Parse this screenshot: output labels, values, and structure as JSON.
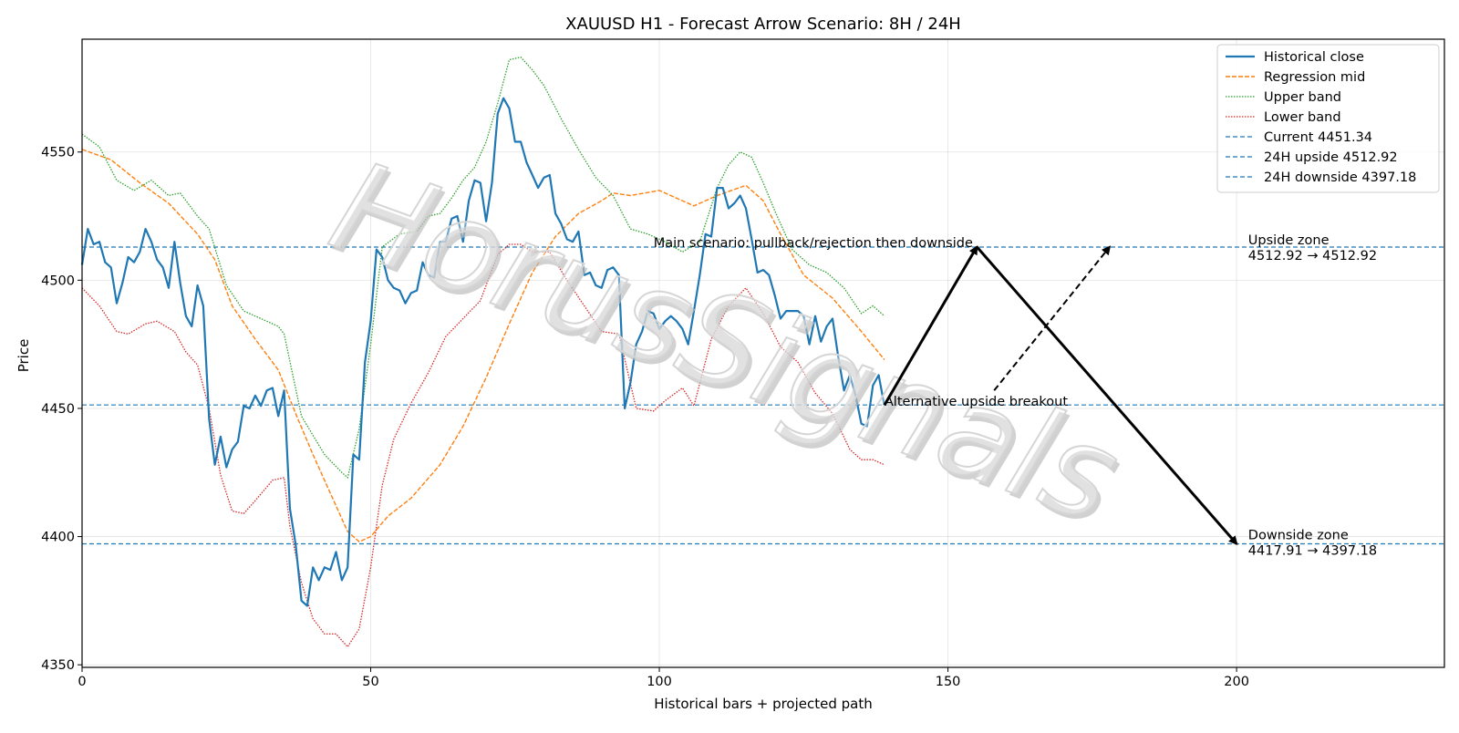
{
  "chart_data": {
    "type": "line",
    "title": "XAUUSD H1 - Forecast Arrow Scenario: 8H / 24H",
    "xlabel": "Historical bars + projected path",
    "ylabel": "Price",
    "xlim": [
      0,
      236
    ],
    "ylim": [
      4349,
      4594
    ],
    "xticks": [
      0,
      50,
      100,
      150,
      200
    ],
    "yticks": [
      4350,
      4400,
      4450,
      4500,
      4550
    ],
    "grid": true,
    "legend_position": "top-right",
    "watermark": "HorusSignals",
    "colors": {
      "historical": "#1f77b4",
      "mid": "#ff7f0e",
      "upper": "#2ca02c",
      "lower": "#d62728",
      "hline": "#1f77b4",
      "arrow": "#000000"
    },
    "legend": [
      {
        "label": "Historical close",
        "series": "close"
      },
      {
        "label": "Regression mid",
        "series": "mid"
      },
      {
        "label": "Upper band",
        "series": "upper"
      },
      {
        "label": "Lower band",
        "series": "lower"
      },
      {
        "label": "Current 4451.34",
        "series": "current"
      },
      {
        "label": "24H upside 4512.92",
        "series": "upside"
      },
      {
        "label": "24H downside 4397.18",
        "series": "downside"
      }
    ],
    "close": [
      [
        0,
        4506
      ],
      [
        1,
        4520
      ],
      [
        2,
        4514
      ],
      [
        3,
        4515
      ],
      [
        4,
        4507
      ],
      [
        5,
        4505
      ],
      [
        6,
        4491
      ],
      [
        7,
        4499
      ],
      [
        8,
        4509
      ],
      [
        9,
        4507
      ],
      [
        10,
        4511
      ],
      [
        11,
        4520
      ],
      [
        12,
        4515
      ],
      [
        13,
        4508
      ],
      [
        14,
        4505
      ],
      [
        15,
        4497
      ],
      [
        16,
        4515
      ],
      [
        17,
        4499
      ],
      [
        18,
        4486
      ],
      [
        19,
        4482
      ],
      [
        20,
        4498
      ],
      [
        21,
        4490
      ],
      [
        22,
        4446
      ],
      [
        23,
        4428
      ],
      [
        24,
        4439
      ],
      [
        25,
        4427
      ],
      [
        26,
        4434
      ],
      [
        27,
        4437
      ],
      [
        28,
        4451
      ],
      [
        29,
        4450
      ],
      [
        30,
        4455
      ],
      [
        31,
        4451
      ],
      [
        32,
        4457
      ],
      [
        33,
        4458
      ],
      [
        34,
        4447
      ],
      [
        35,
        4457
      ],
      [
        36,
        4411
      ],
      [
        37,
        4397
      ],
      [
        38,
        4375
      ],
      [
        39,
        4373
      ],
      [
        40,
        4388
      ],
      [
        41,
        4383
      ],
      [
        42,
        4388
      ],
      [
        43,
        4387
      ],
      [
        44,
        4394
      ],
      [
        45,
        4383
      ],
      [
        46,
        4388
      ],
      [
        47,
        4432
      ],
      [
        48,
        4430
      ],
      [
        49,
        4468
      ],
      [
        50,
        4484
      ],
      [
        51,
        4512
      ],
      [
        52,
        4509
      ],
      [
        53,
        4500
      ],
      [
        54,
        4497
      ],
      [
        55,
        4496
      ],
      [
        56,
        4491
      ],
      [
        57,
        4495
      ],
      [
        58,
        4496
      ],
      [
        59,
        4507
      ],
      [
        60,
        4502
      ],
      [
        61,
        4501
      ],
      [
        62,
        4515
      ],
      [
        63,
        4515
      ],
      [
        64,
        4524
      ],
      [
        65,
        4525
      ],
      [
        66,
        4515
      ],
      [
        67,
        4531
      ],
      [
        68,
        4539
      ],
      [
        69,
        4538
      ],
      [
        70,
        4523
      ],
      [
        71,
        4538
      ],
      [
        72,
        4565
      ],
      [
        73,
        4571
      ],
      [
        74,
        4567
      ],
      [
        75,
        4554
      ],
      [
        76,
        4554
      ],
      [
        77,
        4546
      ],
      [
        78,
        4541
      ],
      [
        79,
        4536
      ],
      [
        80,
        4540
      ],
      [
        81,
        4541
      ],
      [
        82,
        4526
      ],
      [
        83,
        4522
      ],
      [
        84,
        4516
      ],
      [
        85,
        4515
      ],
      [
        86,
        4519
      ],
      [
        87,
        4502
      ],
      [
        88,
        4503
      ],
      [
        89,
        4498
      ],
      [
        90,
        4497
      ],
      [
        91,
        4504
      ],
      [
        92,
        4505
      ],
      [
        93,
        4502
      ],
      [
        94,
        4450
      ],
      [
        95,
        4460
      ],
      [
        96,
        4475
      ],
      [
        97,
        4480
      ],
      [
        98,
        4488
      ],
      [
        99,
        4487
      ],
      [
        100,
        4481
      ],
      [
        101,
        4484
      ],
      [
        102,
        4486
      ],
      [
        103,
        4484
      ],
      [
        104,
        4481
      ],
      [
        105,
        4475
      ],
      [
        106,
        4488
      ],
      [
        107,
        4502
      ],
      [
        108,
        4518
      ],
      [
        109,
        4517
      ],
      [
        110,
        4536
      ],
      [
        111,
        4536
      ],
      [
        112,
        4528
      ],
      [
        113,
        4530
      ],
      [
        114,
        4533
      ],
      [
        115,
        4528
      ],
      [
        116,
        4516
      ],
      [
        117,
        4503
      ],
      [
        118,
        4504
      ],
      [
        119,
        4502
      ],
      [
        120,
        4494
      ],
      [
        121,
        4485
      ],
      [
        122,
        4488
      ],
      [
        123,
        4488
      ],
      [
        124,
        4488
      ],
      [
        125,
        4486
      ],
      [
        126,
        4475
      ],
      [
        127,
        4486
      ],
      [
        128,
        4476
      ],
      [
        129,
        4482
      ],
      [
        130,
        4485
      ],
      [
        131,
        4470
      ],
      [
        132,
        4457
      ],
      [
        133,
        4463
      ],
      [
        134,
        4455
      ],
      [
        135,
        4444
      ],
      [
        136,
        4443
      ],
      [
        137,
        4459
      ],
      [
        138,
        4463
      ],
      [
        139,
        4451
      ]
    ],
    "mid": [
      [
        0,
        4551
      ],
      [
        5,
        4547
      ],
      [
        10,
        4538
      ],
      [
        15,
        4530
      ],
      [
        20,
        4518
      ],
      [
        23,
        4508
      ],
      [
        26,
        4490
      ],
      [
        30,
        4477
      ],
      [
        34,
        4465
      ],
      [
        37,
        4448
      ],
      [
        40,
        4432
      ],
      [
        44,
        4412
      ],
      [
        46,
        4402
      ],
      [
        48,
        4398
      ],
      [
        50,
        4400
      ],
      [
        53,
        4408
      ],
      [
        57,
        4415
      ],
      [
        62,
        4428
      ],
      [
        66,
        4443
      ],
      [
        70,
        4462
      ],
      [
        74,
        4483
      ],
      [
        78,
        4503
      ],
      [
        82,
        4517
      ],
      [
        86,
        4526
      ],
      [
        90,
        4531
      ],
      [
        92,
        4534
      ],
      [
        95,
        4533
      ],
      [
        100,
        4535
      ],
      [
        103,
        4532
      ],
      [
        106,
        4529
      ],
      [
        110,
        4533
      ],
      [
        115,
        4537
      ],
      [
        118,
        4531
      ],
      [
        121,
        4518
      ],
      [
        125,
        4502
      ],
      [
        130,
        4493
      ],
      [
        135,
        4480
      ],
      [
        139,
        4469
      ]
    ],
    "upper": [
      [
        0,
        4557
      ],
      [
        3,
        4552
      ],
      [
        6,
        4539
      ],
      [
        9,
        4535
      ],
      [
        12,
        4539
      ],
      [
        15,
        4533
      ],
      [
        17,
        4534
      ],
      [
        20,
        4525
      ],
      [
        22,
        4520
      ],
      [
        25,
        4498
      ],
      [
        28,
        4488
      ],
      [
        31,
        4485
      ],
      [
        34,
        4482
      ],
      [
        35,
        4479
      ],
      [
        38,
        4447
      ],
      [
        42,
        4432
      ],
      [
        45,
        4425
      ],
      [
        46,
        4423
      ],
      [
        48,
        4442
      ],
      [
        50,
        4475
      ],
      [
        52,
        4513
      ],
      [
        55,
        4518
      ],
      [
        58,
        4519
      ],
      [
        60,
        4525
      ],
      [
        62,
        4526
      ],
      [
        64,
        4532
      ],
      [
        66,
        4539
      ],
      [
        68,
        4544
      ],
      [
        70,
        4554
      ],
      [
        72,
        4569
      ],
      [
        74,
        4586
      ],
      [
        76,
        4587
      ],
      [
        78,
        4582
      ],
      [
        80,
        4576
      ],
      [
        83,
        4563
      ],
      [
        86,
        4551
      ],
      [
        89,
        4540
      ],
      [
        92,
        4533
      ],
      [
        95,
        4520
      ],
      [
        98,
        4518
      ],
      [
        101,
        4515
      ],
      [
        104,
        4511
      ],
      [
        107,
        4515
      ],
      [
        110,
        4536
      ],
      [
        112,
        4545
      ],
      [
        114,
        4550
      ],
      [
        116,
        4548
      ],
      [
        118,
        4538
      ],
      [
        120,
        4527
      ],
      [
        123,
        4512
      ],
      [
        126,
        4506
      ],
      [
        129,
        4503
      ],
      [
        132,
        4497
      ],
      [
        135,
        4487
      ],
      [
        137,
        4490
      ],
      [
        139,
        4486
      ]
    ],
    "lower": [
      [
        0,
        4497
      ],
      [
        3,
        4490
      ],
      [
        6,
        4480
      ],
      [
        8,
        4479
      ],
      [
        11,
        4483
      ],
      [
        13,
        4484
      ],
      [
        16,
        4480
      ],
      [
        18,
        4472
      ],
      [
        20,
        4467
      ],
      [
        22,
        4450
      ],
      [
        24,
        4424
      ],
      [
        26,
        4410
      ],
      [
        28,
        4409
      ],
      [
        30,
        4414
      ],
      [
        33,
        4422
      ],
      [
        35,
        4423
      ],
      [
        36,
        4404
      ],
      [
        38,
        4382
      ],
      [
        40,
        4368
      ],
      [
        42,
        4362
      ],
      [
        44,
        4362
      ],
      [
        46,
        4357
      ],
      [
        48,
        4364
      ],
      [
        50,
        4388
      ],
      [
        52,
        4420
      ],
      [
        54,
        4438
      ],
      [
        57,
        4452
      ],
      [
        60,
        4464
      ],
      [
        63,
        4478
      ],
      [
        66,
        4485
      ],
      [
        69,
        4492
      ],
      [
        72,
        4510
      ],
      [
        74,
        4514
      ],
      [
        76,
        4514
      ],
      [
        78,
        4511
      ],
      [
        81,
        4511
      ],
      [
        84,
        4500
      ],
      [
        87,
        4490
      ],
      [
        90,
        4480
      ],
      [
        93,
        4479
      ],
      [
        96,
        4450
      ],
      [
        99,
        4449
      ],
      [
        101,
        4453
      ],
      [
        104,
        4458
      ],
      [
        106,
        4451
      ],
      [
        109,
        4477
      ],
      [
        112,
        4490
      ],
      [
        115,
        4497
      ],
      [
        118,
        4487
      ],
      [
        121,
        4474
      ],
      [
        124,
        4468
      ],
      [
        127,
        4456
      ],
      [
        130,
        4448
      ],
      [
        133,
        4434
      ],
      [
        135,
        4430
      ],
      [
        137,
        4430
      ],
      [
        139,
        4428
      ]
    ],
    "hlines": [
      {
        "name": "current",
        "y": 4451.34
      },
      {
        "name": "upside",
        "y": 4512.92
      },
      {
        "name": "downside",
        "y": 4397.18
      }
    ],
    "arrows": [
      {
        "name": "main-up",
        "from": [
          139,
          4451.34
        ],
        "to": [
          155,
          4513
        ],
        "style": "solid"
      },
      {
        "name": "main-down",
        "from": [
          155,
          4513
        ],
        "to": [
          200,
          4397.18
        ],
        "style": "solid"
      },
      {
        "name": "alt-up",
        "from": [
          158,
          4457
        ],
        "to": [
          178,
          4513
        ],
        "style": "dashed"
      }
    ],
    "annotations": {
      "main_scenario": {
        "text": "Main scenario: pullback/rejection then downside",
        "x": 99,
        "y": 4513
      },
      "alt_scenario": {
        "text": "Alternative upside breakout",
        "x": 139,
        "y": 4451
      },
      "upside_zone_title": {
        "text": "Upside zone",
        "x": 202,
        "y": 4514
      },
      "upside_zone_range": {
        "text": "4512.92 → 4512.92",
        "x": 202,
        "y": 4508
      },
      "downside_zone_title": {
        "text": "Downside zone",
        "x": 202,
        "y": 4399
      },
      "downside_zone_range": {
        "text": "4417.91 → 4397.18",
        "x": 202,
        "y": 4393
      }
    }
  }
}
